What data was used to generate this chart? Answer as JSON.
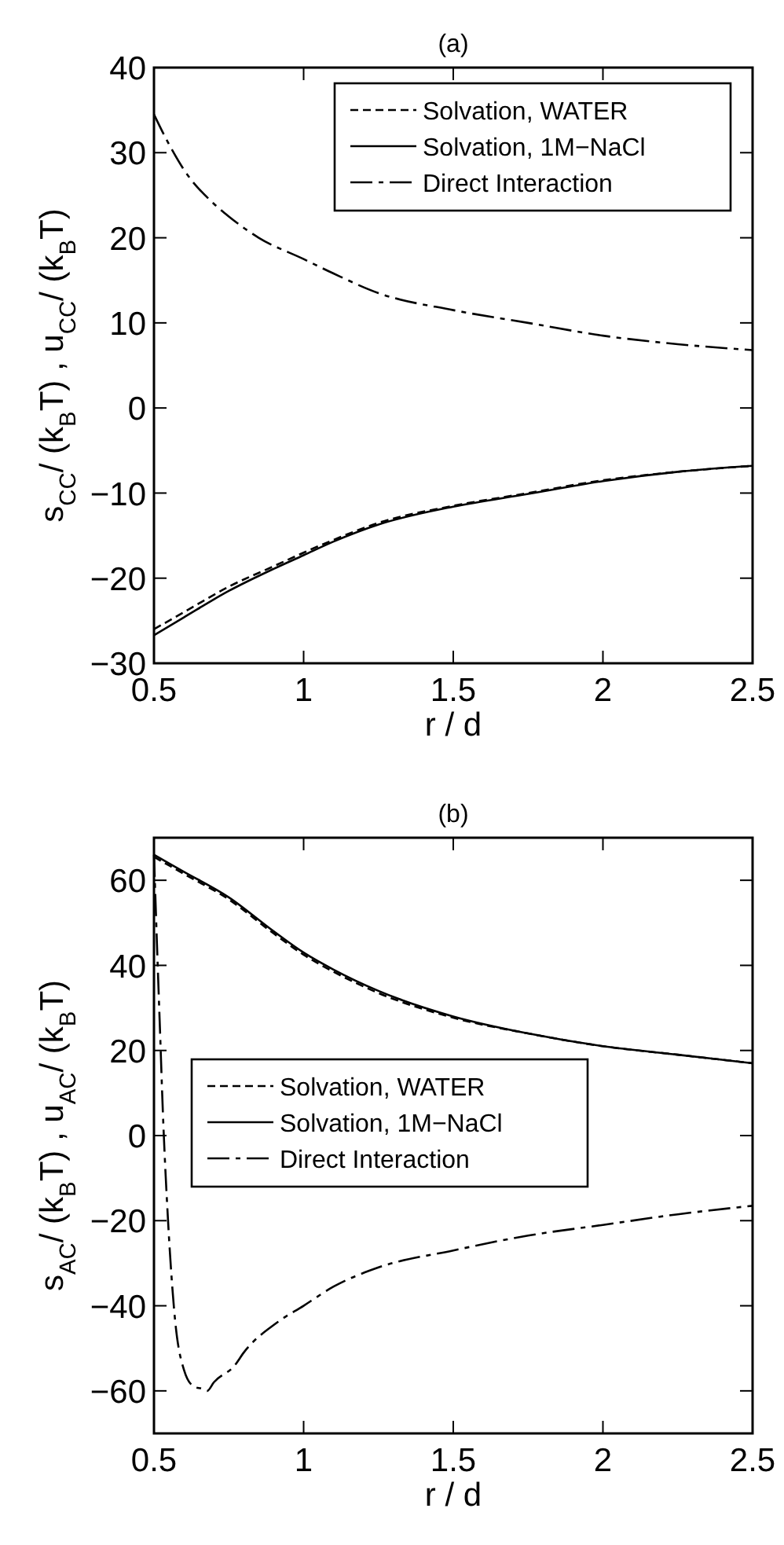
{
  "chart_data": [
    {
      "type": "line",
      "title": "(a)",
      "xlabel": "r / d",
      "ylabel": "s$_{CC}$/ (k$_{B}$T) , u$_{CC}$/ (k$_{B}$T)",
      "xlim": [
        0.5,
        2.5
      ],
      "ylim": [
        -30,
        40
      ],
      "xticks": [
        {
          "value": 0.5,
          "label": "0.5"
        },
        {
          "value": 1,
          "label": "1"
        },
        {
          "value": 1.5,
          "label": "1.5"
        },
        {
          "value": 2,
          "label": "2"
        },
        {
          "value": 2.5,
          "label": "2.5"
        }
      ],
      "yticks": [
        {
          "value": -30,
          "label": "−30"
        },
        {
          "value": -20,
          "label": "−20"
        },
        {
          "value": -10,
          "label": "−10"
        },
        0,
        10,
        20,
        30,
        40
      ],
      "legend": "top right",
      "grid": false,
      "series": [
        {
          "name": "Solvation, WATER",
          "color": "#000000",
          "line_style": "dashed",
          "x": [
            0.5,
            0.6,
            0.75,
            0.9,
            1.0,
            1.1,
            1.25,
            1.5,
            1.75,
            2.0,
            2.25,
            2.5
          ],
          "values": [
            -26,
            -24,
            -21,
            -18.6,
            -17,
            -15.5,
            -13.5,
            -11.5,
            -10,
            -8.5,
            -7.5,
            -6.8
          ]
        },
        {
          "name": "Solvation, 1M−NaCl",
          "color": "#000000",
          "line_style": "solid",
          "x": [
            0.5,
            0.6,
            0.75,
            0.9,
            1.0,
            1.1,
            1.25,
            1.5,
            1.75,
            2.0,
            2.25,
            2.5
          ],
          "values": [
            -26.7,
            -24.6,
            -21.5,
            -18.9,
            -17.3,
            -15.7,
            -13.7,
            -11.6,
            -10.1,
            -8.6,
            -7.5,
            -6.8
          ]
        },
        {
          "name": "Direct Interaction",
          "color": "#000000",
          "line_style": "dashdot",
          "x": [
            0.5,
            0.55,
            0.6,
            0.7,
            0.75,
            0.85,
            1.0,
            1.1,
            1.25,
            1.5,
            1.75,
            2.0,
            2.25,
            2.5
          ],
          "values": [
            34.5,
            31,
            28,
            24,
            22.5,
            20,
            17.5,
            15.8,
            13.5,
            11.5,
            10,
            8.5,
            7.5,
            6.8
          ]
        }
      ]
    },
    {
      "type": "line",
      "title": "(b)",
      "xlabel": "r / d",
      "ylabel": "s$_{AC}$/ (k$_{B}$T) , u$_{AC}$/ (k$_{B}$T)",
      "xlim": [
        0.5,
        2.5
      ],
      "ylim": [
        -70,
        70
      ],
      "xticks": [
        {
          "value": 0.5,
          "label": "0.5"
        },
        {
          "value": 1,
          "label": "1"
        },
        {
          "value": 1.5,
          "label": "1.5"
        },
        {
          "value": 2,
          "label": "2"
        },
        {
          "value": 2.5,
          "label": "2.5"
        }
      ],
      "yticks": [
        {
          "value": -60,
          "label": "−60"
        },
        {
          "value": -40,
          "label": "−40"
        },
        {
          "value": -20,
          "label": "−20"
        },
        0,
        20,
        40,
        60
      ],
      "legend": "left",
      "grid": false,
      "series": [
        {
          "name": "Solvation, WATER",
          "color": "#000000",
          "line_style": "dashed",
          "x": [
            0.5,
            0.6,
            0.75,
            0.9,
            1.0,
            1.1,
            1.25,
            1.5,
            1.75,
            2.0,
            2.25,
            2.5
          ],
          "values": [
            65.5,
            61.5,
            55.5,
            47.5,
            42.5,
            38.5,
            33.5,
            27.7,
            24,
            21,
            19,
            17
          ]
        },
        {
          "name": "Solvation, 1M−NaCl",
          "color": "#000000",
          "line_style": "solid",
          "x": [
            0.5,
            0.6,
            0.75,
            0.9,
            1.0,
            1.1,
            1.25,
            1.5,
            1.75,
            2.0,
            2.25,
            2.5
          ],
          "values": [
            66,
            62,
            56,
            48,
            43,
            39,
            34,
            28,
            24,
            21,
            19,
            17
          ]
        },
        {
          "name": "Direct Interaction",
          "color": "#000000",
          "line_style": "dashdot",
          "x": [
            0.5,
            0.51,
            0.52,
            0.53,
            0.547,
            0.57,
            0.6,
            0.634,
            0.66,
            0.678,
            0.7,
            0.77,
            0.8,
            0.91,
            1.0,
            1.1,
            1.25,
            1.5,
            1.75,
            2.0,
            2.25,
            2.5
          ],
          "values": [
            66,
            45,
            25,
            5,
            -20,
            -43,
            -55,
            -59,
            -59.5,
            -60,
            -58,
            -54,
            -51,
            -44,
            -40,
            -35.5,
            -31,
            -27,
            -23.5,
            -21,
            -18.5,
            -16.5
          ]
        }
      ]
    }
  ]
}
